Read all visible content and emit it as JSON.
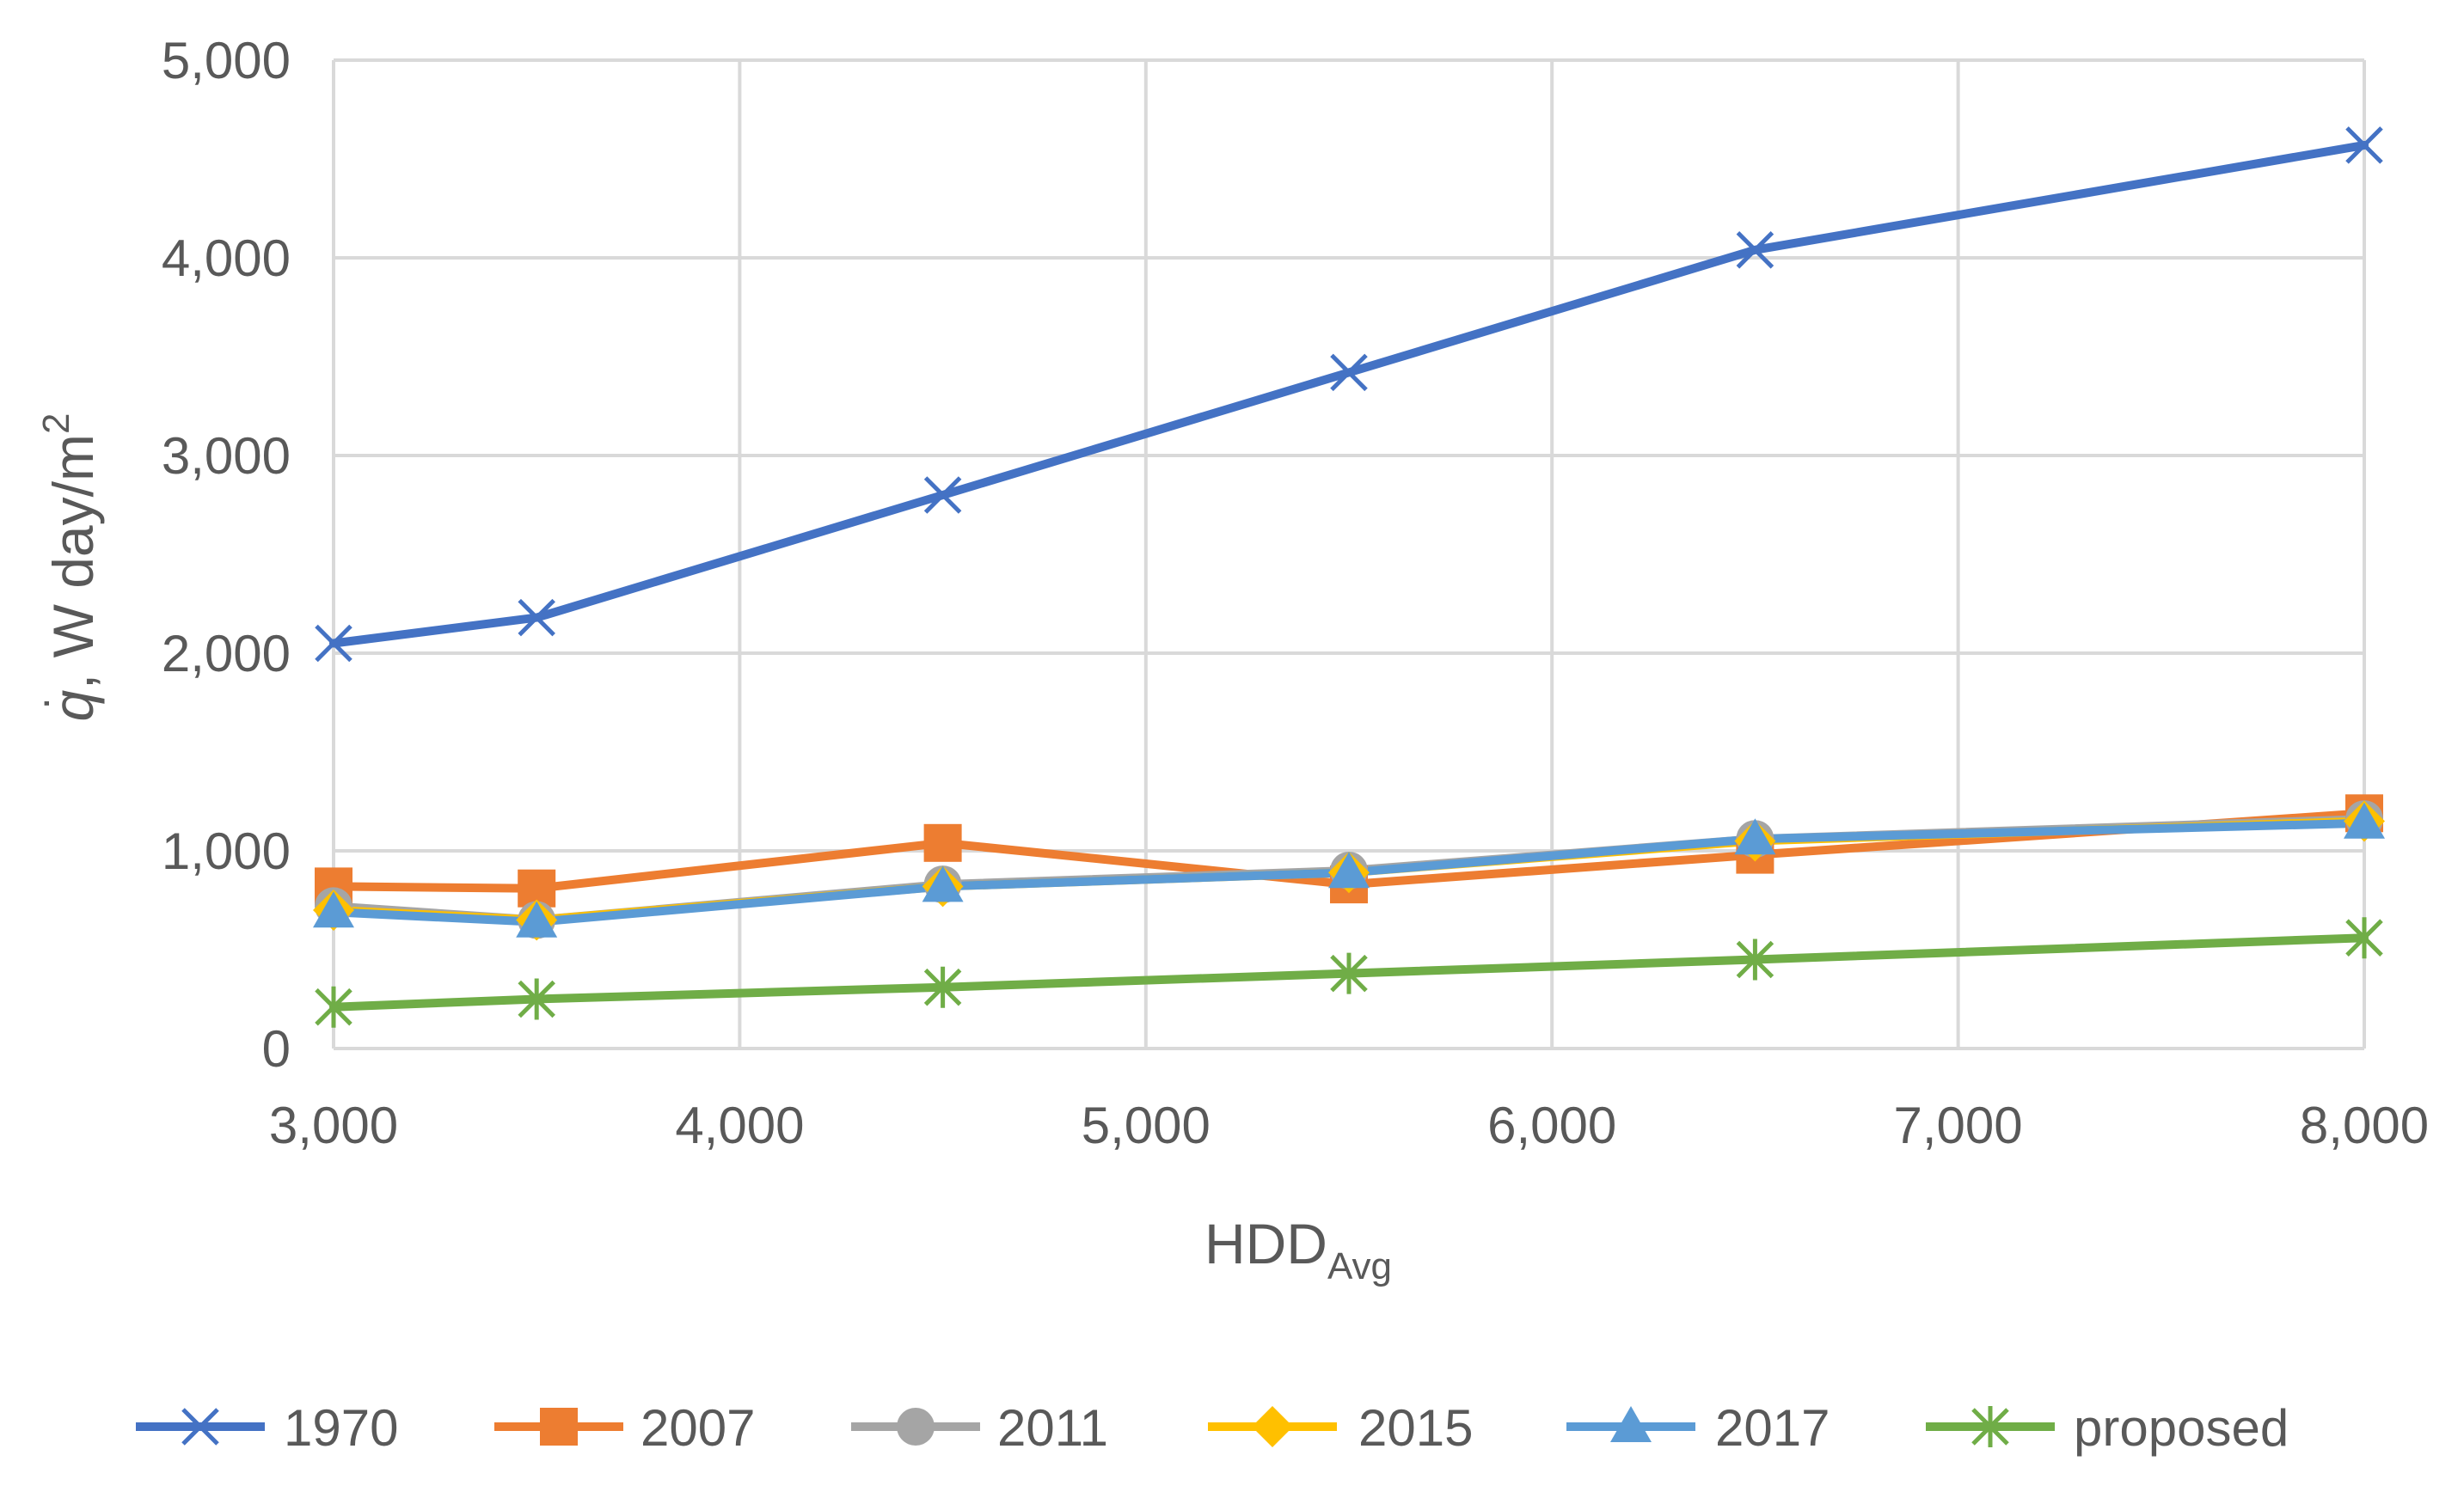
{
  "chart_data": {
    "type": "line",
    "title": "",
    "xlabel": {
      "main": "HDD",
      "sub": "Avg"
    },
    "ylabel": {
      "symbol": "q",
      "dot": "·",
      "rest": ", W day/m",
      "sup": "2"
    },
    "xlim": [
      3000,
      8000
    ],
    "ylim": [
      0,
      5000
    ],
    "xticks": [
      3000,
      4000,
      5000,
      6000,
      7000,
      8000
    ],
    "xtick_labels": [
      "3,000",
      "4,000",
      "5,000",
      "6,000",
      "7,000",
      "8,000"
    ],
    "yticks": [
      0,
      1000,
      2000,
      3000,
      4000,
      5000
    ],
    "ytick_labels": [
      "0",
      "1,000",
      "2,000",
      "3,000",
      "4,000",
      "5,000"
    ],
    "grid": true,
    "legend_position": "bottom",
    "x": [
      3000,
      3500,
      4500,
      5500,
      6500,
      8000
    ],
    "series": [
      {
        "name": "1970",
        "color": "#4472C4",
        "marker": "x",
        "values": [
          2050,
          2180,
          2800,
          3420,
          4040,
          4570
        ]
      },
      {
        "name": "2007",
        "color": "#ED7D31",
        "marker": "square",
        "values": [
          820,
          810,
          1040,
          830,
          980,
          1190
        ]
      },
      {
        "name": "2011",
        "color": "#A5A5A5",
        "marker": "circle",
        "values": [
          720,
          650,
          830,
          900,
          1060,
          1160
        ]
      },
      {
        "name": "2015",
        "color": "#FFC000",
        "marker": "diamond",
        "values": [
          700,
          650,
          820,
          890,
          1050,
          1150
        ]
      },
      {
        "name": "2017",
        "color": "#5B9BD5",
        "marker": "triangle",
        "values": [
          690,
          640,
          820,
          890,
          1060,
          1140
        ]
      },
      {
        "name": "proposed",
        "color": "#70AD47",
        "marker": "star",
        "values": [
          210,
          250,
          310,
          380,
          450,
          560
        ]
      }
    ]
  }
}
